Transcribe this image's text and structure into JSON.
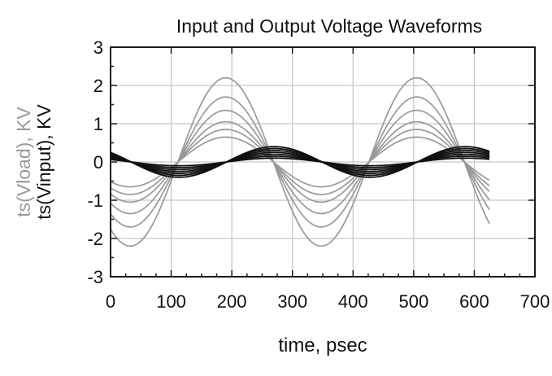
{
  "chart_data": {
    "type": "line",
    "title": "Input and Output Voltage Waveforms",
    "xlabel": "time, psec",
    "ylabels": [
      {
        "text": "ts(Vload), KV",
        "color": "#999999"
      },
      {
        "text": "ts(Vinput), KV",
        "color": "#111111"
      }
    ],
    "xlim": [
      0,
      700
    ],
    "ylim": [
      -3,
      3
    ],
    "xticks": [
      "0",
      "100",
      "200",
      "300",
      "400",
      "500",
      "600",
      "700"
    ],
    "yticks": [
      "3",
      "2",
      "1",
      "0",
      "-1",
      "-2",
      "-3"
    ],
    "grid": true,
    "colors": {
      "load": "#999999",
      "input": "#111111"
    },
    "model": {
      "x_start": 0,
      "x_end": 625,
      "period_psec": 315,
      "load_peak_time_psec": 190,
      "input_peak_time_psec": 270
    },
    "series": [
      {
        "group": "load",
        "amplitude": 2.2
      },
      {
        "group": "load",
        "amplitude": 1.7
      },
      {
        "group": "load",
        "amplitude": 1.35
      },
      {
        "group": "load",
        "amplitude": 1.05
      },
      {
        "group": "load",
        "amplitude": 0.85
      },
      {
        "group": "load",
        "amplitude": 0.65
      },
      {
        "group": "input",
        "amplitude": 0.4
      },
      {
        "group": "input",
        "amplitude": 0.35
      },
      {
        "group": "input",
        "amplitude": 0.3
      },
      {
        "group": "input",
        "amplitude": 0.25
      },
      {
        "group": "input",
        "amplitude": 0.2
      },
      {
        "group": "input",
        "amplitude": 0.15
      },
      {
        "group": "input",
        "amplitude": 0.1
      }
    ]
  }
}
